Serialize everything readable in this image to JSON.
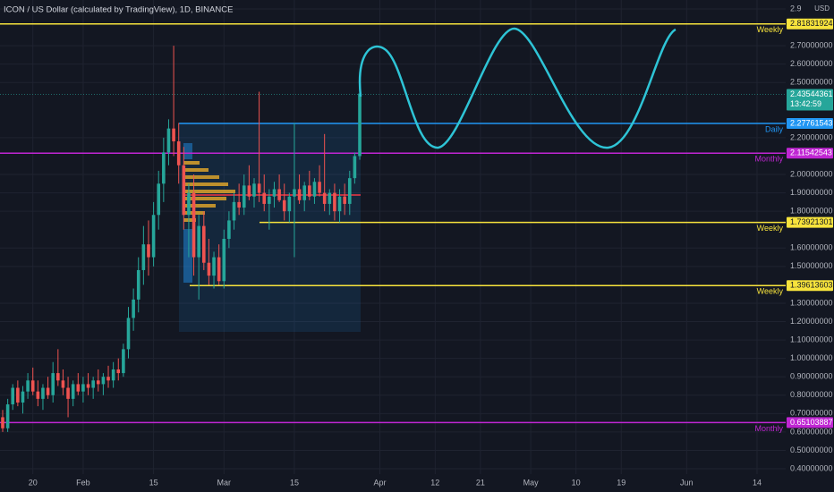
{
  "chart_data": {
    "type": "candlestick",
    "title": "ICON / US Dollar (calculated by TradingView), 1D, BINANCE",
    "currency": "USD",
    "up_color": "#26a69a",
    "down_color": "#ef5350",
    "xlim": [
      -0.5,
      155.7
    ],
    "ylim": [
      0.38,
      2.9
    ],
    "xticks": [
      {
        "value": 6,
        "label": "20"
      },
      {
        "value": 16,
        "label": "Feb"
      },
      {
        "value": 30,
        "label": "15"
      },
      {
        "value": 44,
        "label": "Mar"
      },
      {
        "value": 58,
        "label": "15"
      },
      {
        "value": 75,
        "label": "Apr"
      },
      {
        "value": 86,
        "label": "12"
      },
      {
        "value": 95,
        "label": "21"
      },
      {
        "value": 105,
        "label": "May"
      },
      {
        "value": 114,
        "label": "10"
      },
      {
        "value": 123,
        "label": "19"
      },
      {
        "value": 136,
        "label": "Jun"
      },
      {
        "value": 150,
        "label": "14"
      }
    ],
    "yticks": [
      {
        "value": 2.9,
        "label": "2.9"
      },
      {
        "value": 2.7,
        "label": "2.70000000"
      },
      {
        "value": 2.6,
        "label": "2.60000000"
      },
      {
        "value": 2.5,
        "label": "2.50000000"
      },
      {
        "value": 2.2,
        "label": "2.20000000"
      },
      {
        "value": 2.0,
        "label": "2.00000000"
      },
      {
        "value": 1.9,
        "label": "1.90000000"
      },
      {
        "value": 1.8,
        "label": "1.80000000"
      },
      {
        "value": 1.6,
        "label": "1.60000000"
      },
      {
        "value": 1.5,
        "label": "1.50000000"
      },
      {
        "value": 1.3,
        "label": "1.30000000"
      },
      {
        "value": 1.2,
        "label": "1.20000000"
      },
      {
        "value": 1.1,
        "label": "1.10000000"
      },
      {
        "value": 1.0,
        "label": "1.00000000"
      },
      {
        "value": 0.9,
        "label": "0.90000000"
      },
      {
        "value": 0.8,
        "label": "0.80000000"
      },
      {
        "value": 0.7,
        "label": "0.70000000"
      },
      {
        "value": 0.6,
        "label": "0.60000000"
      },
      {
        "value": 0.5,
        "label": "0.50000000"
      },
      {
        "value": 0.4,
        "label": "0.40000000"
      }
    ],
    "grid": true,
    "open": [
      0.68,
      0.62,
      0.75,
      0.84,
      0.76,
      0.82,
      0.88,
      0.82,
      0.78,
      0.84,
      0.8,
      0.92,
      0.88,
      0.84,
      0.78,
      0.86,
      0.82,
      0.86,
      0.84,
      0.88,
      0.86,
      0.9,
      0.88,
      0.94,
      0.92,
      1.05,
      1.22,
      1.32,
      1.48,
      1.62,
      1.55,
      1.78,
      1.95,
      2.12,
      2.25,
      2.18,
      2.05,
      1.78,
      1.9,
      1.55,
      1.72,
      1.52,
      1.45,
      1.55,
      1.42,
      1.65,
      1.75,
      1.85,
      1.82,
      1.94,
      1.88,
      1.95,
      1.9,
      1.84,
      1.88,
      1.92,
      1.86,
      1.8,
      1.88,
      1.92,
      1.86,
      1.94,
      1.88,
      1.96,
      1.9,
      1.84,
      1.9,
      1.8,
      1.88,
      1.84,
      1.98,
      2.1
    ],
    "high": [
      0.72,
      0.78,
      0.86,
      0.88,
      0.85,
      0.92,
      0.95,
      0.88,
      0.86,
      0.9,
      0.98,
      1.05,
      0.94,
      0.9,
      0.88,
      0.92,
      0.9,
      0.92,
      0.9,
      0.94,
      0.92,
      0.96,
      0.98,
      1.0,
      1.08,
      1.28,
      1.38,
      1.55,
      1.72,
      1.75,
      1.85,
      2.02,
      2.2,
      2.3,
      2.7,
      2.28,
      2.15,
      1.95,
      2.0,
      1.78,
      1.8,
      1.65,
      1.58,
      1.62,
      1.7,
      1.8,
      1.9,
      1.95,
      2.0,
      2.05,
      1.98,
      2.45,
      2.0,
      1.92,
      1.96,
      2.0,
      1.95,
      1.9,
      2.28,
      2.0,
      1.96,
      2.02,
      1.98,
      2.05,
      2.22,
      1.92,
      1.95,
      1.92,
      1.95,
      2.02,
      2.12,
      2.48
    ],
    "low": [
      0.6,
      0.6,
      0.72,
      0.74,
      0.7,
      0.78,
      0.8,
      0.74,
      0.72,
      0.78,
      0.76,
      0.85,
      0.8,
      0.68,
      0.74,
      0.8,
      0.76,
      0.8,
      0.78,
      0.82,
      0.8,
      0.84,
      0.84,
      0.88,
      0.9,
      1.0,
      1.15,
      1.25,
      1.4,
      1.45,
      1.5,
      1.7,
      1.85,
      2.05,
      2.1,
      1.95,
      1.7,
      1.55,
      1.45,
      1.32,
      1.48,
      1.4,
      1.38,
      1.4,
      1.38,
      1.6,
      1.7,
      1.78,
      1.78,
      1.86,
      1.82,
      1.85,
      1.8,
      1.7,
      1.82,
      1.85,
      1.75,
      1.74,
      1.55,
      1.84,
      1.8,
      1.86,
      1.84,
      1.88,
      1.8,
      1.78,
      1.75,
      1.74,
      1.78,
      1.78,
      1.95,
      2.08
    ],
    "close": [
      0.62,
      0.75,
      0.84,
      0.76,
      0.82,
      0.88,
      0.82,
      0.78,
      0.84,
      0.8,
      0.92,
      0.88,
      0.84,
      0.78,
      0.86,
      0.82,
      0.86,
      0.84,
      0.88,
      0.86,
      0.9,
      0.88,
      0.94,
      0.92,
      1.05,
      1.22,
      1.32,
      1.48,
      1.62,
      1.55,
      1.78,
      1.95,
      2.12,
      2.25,
      2.18,
      2.05,
      1.78,
      1.9,
      1.55,
      1.72,
      1.52,
      1.45,
      1.55,
      1.42,
      1.65,
      1.75,
      1.85,
      1.82,
      1.94,
      1.88,
      1.95,
      1.9,
      1.84,
      1.88,
      1.92,
      1.86,
      1.8,
      1.88,
      1.92,
      1.86,
      1.94,
      1.88,
      1.96,
      1.9,
      1.84,
      1.9,
      1.8,
      1.88,
      1.84,
      1.98,
      2.1,
      2.44
    ],
    "levels": [
      {
        "price": 2.81831924,
        "label": "Weekly",
        "color": "#f7e33c"
      },
      {
        "price": 2.27761543,
        "label": "Daily",
        "color": "#2196f3"
      },
      {
        "price": 2.11542543,
        "label": "Monthly",
        "color": "#c026d3"
      },
      {
        "price": 1.73921301,
        "label": "Weekly",
        "color": "#f7e33c"
      },
      {
        "price": 1.39613603,
        "label": "Weekly",
        "color": "#f7e33c"
      },
      {
        "price": 0.65103887,
        "label": "Monthly",
        "color": "#c026d3"
      }
    ],
    "last_price": 2.43544361,
    "countdown": "13:42:59",
    "last_color": "#26a69a"
  }
}
